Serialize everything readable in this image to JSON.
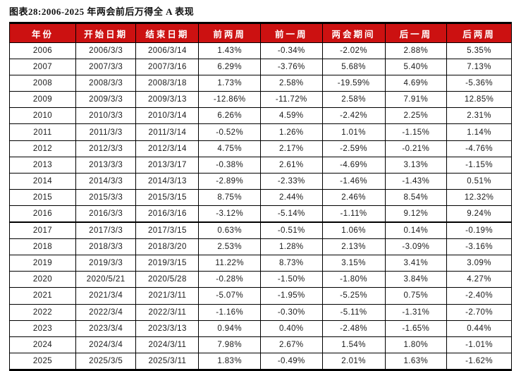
{
  "figure": {
    "title": "图表28:2006-2025 年两会前后万得全 A 表现"
  },
  "colors": {
    "header_background": "#CC1111",
    "header_text": "#FFFFFF",
    "grid_border": "#000000",
    "body_text": "#1A1A1A"
  },
  "chart_data": {
    "type": "table",
    "title": "图表28:2006-2025 年两会前后万得全 A 表现",
    "columns": [
      "年份",
      "开始日期",
      "结束日期",
      "前两周",
      "前一周",
      "两会期间",
      "后一周",
      "后两周"
    ],
    "rows": [
      [
        "2006",
        "2006/3/3",
        "2006/3/14",
        "1.43%",
        "-0.34%",
        "-2.02%",
        "2.88%",
        "5.35%"
      ],
      [
        "2007",
        "2007/3/3",
        "2007/3/16",
        "6.29%",
        "-3.76%",
        "5.68%",
        "5.40%",
        "7.13%"
      ],
      [
        "2008",
        "2008/3/3",
        "2008/3/18",
        "1.73%",
        "2.58%",
        "-19.59%",
        "4.69%",
        "-5.36%"
      ],
      [
        "2009",
        "2009/3/3",
        "2009/3/13",
        "-12.86%",
        "-11.72%",
        "2.58%",
        "7.91%",
        "12.85%"
      ],
      [
        "2010",
        "2010/3/3",
        "2010/3/14",
        "6.26%",
        "4.59%",
        "-2.42%",
        "2.25%",
        "2.31%"
      ],
      [
        "2011",
        "2011/3/3",
        "2011/3/14",
        "-0.52%",
        "1.26%",
        "1.01%",
        "-1.15%",
        "1.14%"
      ],
      [
        "2012",
        "2012/3/3",
        "2012/3/14",
        "4.75%",
        "2.17%",
        "-2.59%",
        "-0.21%",
        "-4.76%"
      ],
      [
        "2013",
        "2013/3/3",
        "2013/3/17",
        "-0.38%",
        "2.61%",
        "-4.69%",
        "3.13%",
        "-1.15%"
      ],
      [
        "2014",
        "2014/3/3",
        "2014/3/13",
        "-2.89%",
        "-2.33%",
        "-1.46%",
        "-1.43%",
        "0.51%"
      ],
      [
        "2015",
        "2015/3/3",
        "2015/3/15",
        "8.75%",
        "2.44%",
        "2.46%",
        "8.54%",
        "12.32%"
      ],
      [
        "2016",
        "2016/3/3",
        "2016/3/16",
        "-3.12%",
        "-5.14%",
        "-1.11%",
        "9.12%",
        "9.24%"
      ],
      [
        "2017",
        "2017/3/3",
        "2017/3/15",
        "0.63%",
        "-0.51%",
        "1.06%",
        "0.14%",
        "-0.19%"
      ],
      [
        "2018",
        "2018/3/3",
        "2018/3/20",
        "2.53%",
        "1.28%",
        "2.13%",
        "-3.09%",
        "-3.16%"
      ],
      [
        "2019",
        "2019/3/3",
        "2019/3/15",
        "11.22%",
        "8.73%",
        "3.15%",
        "3.41%",
        "3.09%"
      ],
      [
        "2020",
        "2020/5/21",
        "2020/5/28",
        "-0.28%",
        "-1.50%",
        "-1.80%",
        "3.84%",
        "4.27%"
      ],
      [
        "2021",
        "2021/3/4",
        "2021/3/11",
        "-5.07%",
        "-1.95%",
        "-5.25%",
        "0.75%",
        "-2.40%"
      ],
      [
        "2022",
        "2022/3/4",
        "2022/3/11",
        "-1.16%",
        "-0.30%",
        "-5.11%",
        "-1.31%",
        "-2.70%"
      ],
      [
        "2023",
        "2023/3/4",
        "2023/3/13",
        "0.94%",
        "0.40%",
        "-2.48%",
        "-1.65%",
        "0.44%"
      ],
      [
        "2024",
        "2024/3/4",
        "2024/3/11",
        "7.98%",
        "2.67%",
        "1.54%",
        "1.80%",
        "-1.01%"
      ],
      [
        "2025",
        "2025/3/5",
        "2025/3/11",
        "1.83%",
        "-0.49%",
        "2.01%",
        "1.63%",
        "-1.62%"
      ]
    ],
    "layout_hints": {
      "legend": "none",
      "grid": "full black grid, thick top and bottom rules",
      "thick_divider_after_row_index": 10
    }
  }
}
